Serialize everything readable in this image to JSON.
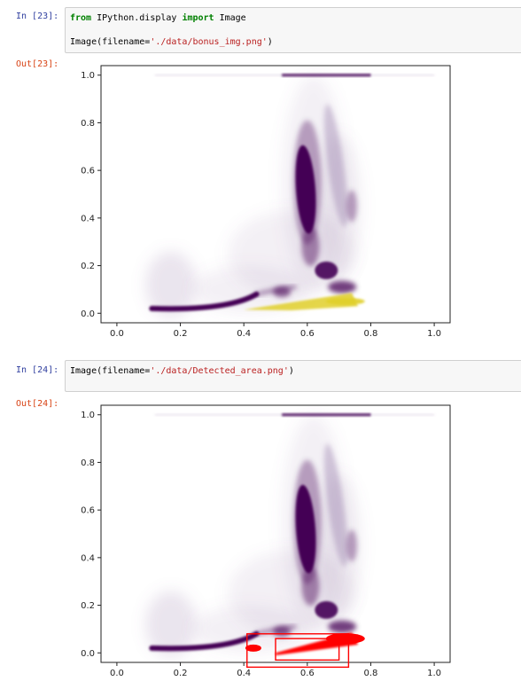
{
  "cells": [
    {
      "in_prompt": "In [23]:",
      "code_lines": [
        {
          "kw1": "from",
          "mid": " IPython.display ",
          "kw2": "import",
          "end": " Image"
        },
        {
          "pre": "Image(filename=",
          "str": "'./data/bonus_img.png'",
          "post": ")"
        }
      ],
      "out_prompt": "Out[23]:"
    },
    {
      "in_prompt": "In [24]:",
      "code_lines": [
        {
          "pre": "Image(filename=",
          "str": "'./data/Detected_area.png'",
          "post": ")"
        }
      ],
      "out_prompt": "Out[24]:"
    }
  ],
  "chart_data": [
    {
      "type": "scatter",
      "title": "",
      "xlabel": "",
      "ylabel": "",
      "xlim": [
        -0.05,
        1.05
      ],
      "ylim": [
        -0.04,
        1.04
      ],
      "xticks": [
        "0.0",
        "0.2",
        "0.4",
        "0.6",
        "0.8",
        "1.0"
      ],
      "yticks": [
        "0.0",
        "0.2",
        "0.4",
        "0.6",
        "0.8",
        "1.0"
      ],
      "grid": false,
      "colors": {
        "dense": "#440154",
        "faint": "#8a6aa0",
        "highlight": "#e0cf2a"
      }
    },
    {
      "type": "scatter",
      "title": "",
      "xlabel": "",
      "ylabel": "",
      "xlim": [
        -0.05,
        1.05
      ],
      "ylim": [
        -0.04,
        1.04
      ],
      "xticks": [
        "0.0",
        "0.2",
        "0.4",
        "0.6",
        "0.8",
        "1.0"
      ],
      "yticks": [
        "0.0",
        "0.2",
        "0.4",
        "0.6",
        "0.8",
        "1.0"
      ],
      "grid": false,
      "colors": {
        "dense": "#440154",
        "faint": "#8a6aa0",
        "detected": "#ff0000"
      },
      "detection_boxes": [
        {
          "x0": 0.41,
          "x1": 0.73,
          "y0": -0.06,
          "y1": 0.08
        },
        {
          "x0": 0.5,
          "x1": 0.7,
          "y0": -0.03,
          "y1": 0.06
        }
      ]
    }
  ]
}
